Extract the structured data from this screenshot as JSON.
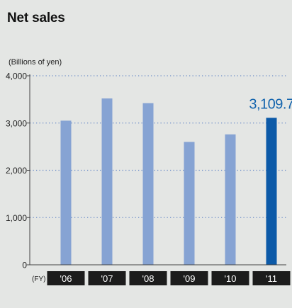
{
  "title": "Net sales",
  "chart_data": {
    "type": "bar",
    "unit_label": "(Billions of yen)",
    "fy_label": "(FY)",
    "categories": [
      "'06",
      "'07",
      "'08",
      "'09",
      "'10",
      "'11"
    ],
    "values": [
      3050,
      3520,
      3420,
      2600,
      2760,
      3109.7
    ],
    "highlight_index": 5,
    "highlight_label": "3,109.7",
    "ylim": [
      0,
      4000
    ],
    "yticks": [
      0,
      1000,
      2000,
      3000,
      4000
    ],
    "ytick_labels": [
      "0",
      "1,000",
      "2,000",
      "3,000",
      "4,000"
    ],
    "grid": true,
    "colors": {
      "bar": "#86a3d3",
      "highlight": "#0c5aa8",
      "highlight_text": "#1163ad",
      "category_box": "#1c1c1c",
      "category_text": "#ffffff"
    }
  }
}
